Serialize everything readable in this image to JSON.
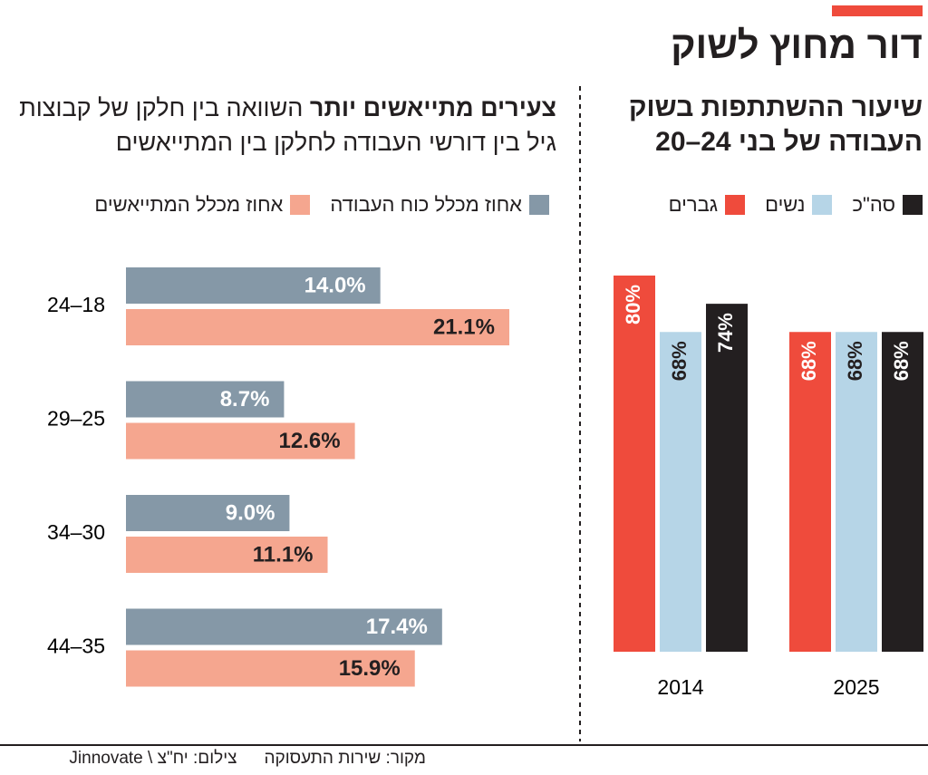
{
  "header": {
    "title": "דור מחוץ לשוק"
  },
  "chart_data": [
    {
      "type": "bar",
      "title": "שיעור ההשתתפות בשוק העבודה של בני 24–20",
      "categories": [
        "2014",
        "2025"
      ],
      "series": [
        {
          "name": "גברים",
          "color": "#ef4b3c",
          "values": [
            80,
            68
          ],
          "value_labels": [
            "80%",
            "68%"
          ]
        },
        {
          "name": "נשים",
          "color": "#b6d5e7",
          "values": [
            68,
            68
          ],
          "value_labels": [
            "68%",
            "68%"
          ]
        },
        {
          "name": "סה\"כ",
          "color": "#231f20",
          "values": [
            74,
            68
          ],
          "value_labels": [
            "74%",
            "68%"
          ]
        }
      ]
    },
    {
      "type": "barh",
      "title": "צעירים מתייאשים יותר",
      "subtitle": "השוואה בין חלקן של קבוצות גיל בין דורשי העבודה לחלקן בין המתייאשים",
      "categories": [
        "24–18",
        "29–25",
        "34–30",
        "44–35"
      ],
      "series": [
        {
          "name": "אחוז מכלל כוח העבודה",
          "color": "#8598a7",
          "values": [
            14.0,
            8.7,
            9.0,
            17.4
          ],
          "value_labels": [
            "14.0%",
            "8.7%",
            "9.0%",
            "17.4%"
          ]
        },
        {
          "name": "אחוז מכלל המתייאשים",
          "color": "#f5a68f",
          "values": [
            21.1,
            12.6,
            11.1,
            15.9
          ],
          "value_labels": [
            "21.1%",
            "12.6%",
            "11.1%",
            "15.9%"
          ]
        }
      ]
    }
  ],
  "footer": {
    "source": "מקור: שירות התעסוקה",
    "credit": "צילום: יח\"צ \\ Jinnovate"
  }
}
